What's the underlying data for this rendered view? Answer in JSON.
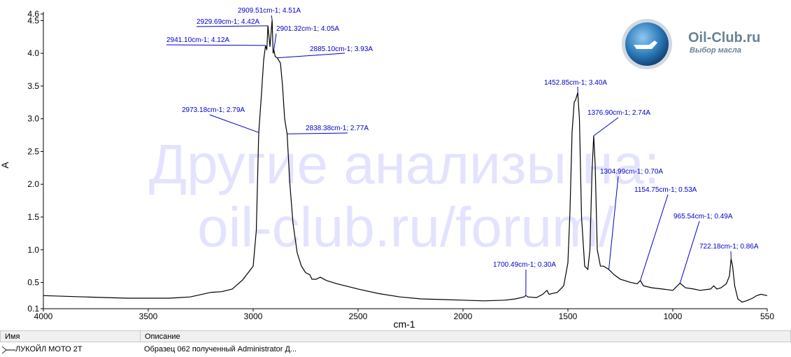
{
  "chart_data": {
    "type": "line",
    "x_label": "cm-1",
    "y_label": "A",
    "color": "#000000",
    "annotation_color": "#0000cc",
    "xlim": [
      4000,
      550
    ],
    "ylim": [
      0.1,
      4.6
    ],
    "xticks": [
      4000,
      3500,
      3000,
      2500,
      2000,
      1500,
      1000,
      550
    ],
    "yticks": [
      0.1,
      0.5,
      {
        "value": 1,
        "label": "1.0"
      },
      1.5,
      {
        "value": 2,
        "label": "2.0"
      },
      2.5,
      {
        "value": 3,
        "label": "3.0"
      },
      3.5,
      {
        "value": 4,
        "label": "4.0"
      },
      4.5,
      4.6
    ],
    "x": [
      4000,
      3800,
      3600,
      3400,
      3300,
      3200,
      3150,
      3100,
      3050,
      3000,
      2985,
      2975,
      2973.18,
      2960,
      2950,
      2941.1,
      2935,
      2929.69,
      2920,
      2915,
      2909.51,
      2905,
      2901.32,
      2895,
      2885.1,
      2870,
      2860,
      2850,
      2838.38,
      2825,
      2810,
      2790,
      2770,
      2750,
      2730,
      2720,
      2700,
      2680,
      2650,
      2600,
      2500,
      2400,
      2300,
      2200,
      2100,
      2000,
      1900,
      1800,
      1750,
      1710,
      1700.49,
      1690,
      1650,
      1620,
      1600,
      1590,
      1550,
      1520,
      1500,
      1490,
      1480,
      1470,
      1462,
      1452.85,
      1445,
      1435,
      1420,
      1405,
      1395,
      1385,
      1376.9,
      1370,
      1360,
      1345,
      1330,
      1304.99,
      1280,
      1250,
      1200,
      1170,
      1154.75,
      1140,
      1100,
      1050,
      1000,
      965.54,
      940,
      900,
      870,
      820,
      805,
      790,
      770,
      745,
      730,
      722.18,
      715,
      705,
      690,
      670,
      650,
      620,
      600,
      580,
      550
    ],
    "values": [
      0.3,
      0.28,
      0.26,
      0.26,
      0.28,
      0.35,
      0.36,
      0.4,
      0.54,
      0.75,
      1.3,
      2.6,
      2.79,
      3.4,
      3.9,
      4.12,
      4.05,
      4.42,
      4.1,
      4.3,
      4.51,
      4.0,
      4.05,
      3.95,
      3.93,
      3.85,
      3.5,
      3.0,
      2.77,
      2.0,
      1.4,
      0.95,
      0.75,
      0.65,
      0.62,
      0.55,
      0.55,
      0.58,
      0.53,
      0.48,
      0.4,
      0.33,
      0.28,
      0.25,
      0.24,
      0.23,
      0.22,
      0.23,
      0.25,
      0.28,
      0.3,
      0.28,
      0.27,
      0.32,
      0.38,
      0.32,
      0.35,
      0.45,
      0.8,
      1.6,
      2.8,
      3.25,
      3.3,
      3.4,
      3.0,
      1.5,
      0.75,
      0.7,
      1.0,
      2.2,
      2.74,
      2.3,
      1.0,
      0.75,
      0.75,
      0.7,
      0.62,
      0.55,
      0.5,
      0.48,
      0.53,
      0.45,
      0.42,
      0.4,
      0.38,
      0.49,
      0.42,
      0.4,
      0.38,
      0.4,
      0.45,
      0.4,
      0.42,
      0.48,
      0.6,
      0.86,
      0.75,
      0.45,
      0.25,
      0.2,
      0.22,
      0.26,
      0.3,
      0.32,
      0.3
    ],
    "annotations": [
      {
        "label": "2909.51cm-1; 4.51A",
        "x": 2909.51,
        "y": 4.51
      },
      {
        "label": "2929.69cm-1; 4.42A",
        "x": 2929.69,
        "y": 4.42
      },
      {
        "label": "2941.10cm-1; 4.12A",
        "x": 2941.1,
        "y": 4.12
      },
      {
        "label": "2901.32cm-1; 4.05A",
        "x": 2901.32,
        "y": 4.05
      },
      {
        "label": "2885.10cm-1; 3.93A",
        "x": 2885.1,
        "y": 3.93
      },
      {
        "label": "2973.18cm-1; 2.79A",
        "x": 2973.18,
        "y": 2.79
      },
      {
        "label": "2838.38cm-1; 2.77A",
        "x": 2838.38,
        "y": 2.77
      },
      {
        "label": "1452.85cm-1; 3.40A",
        "x": 1452.85,
        "y": 3.4
      },
      {
        "label": "1376.90cm-1; 2.74A",
        "x": 1376.9,
        "y": 2.74
      },
      {
        "label": "1304.99cm-1; 0.70A",
        "x": 1304.99,
        "y": 0.7
      },
      {
        "label": "1154.75cm-1; 0.53A",
        "x": 1154.75,
        "y": 0.53
      },
      {
        "label": "965.54cm-1; 0.49A",
        "x": 965.54,
        "y": 0.49
      },
      {
        "label": "722.18cm-1; 0.86A",
        "x": 722.18,
        "y": 0.86
      },
      {
        "label": "1700.49cm-1; 0.30A",
        "x": 1700.49,
        "y": 0.3
      }
    ]
  },
  "watermark": [
    "Другие анализы на:",
    "oil-club.ru/forum/"
  ],
  "logo": {
    "title": "Oil-Club.ru",
    "subtitle": "Выбор масла"
  },
  "table": {
    "headers": [
      "Имя",
      "Описание"
    ],
    "rows": [
      [
        "ЛУКОЙЛ МОТО 2Т",
        "Образец 062 полученный Administrator Д..."
      ]
    ]
  }
}
